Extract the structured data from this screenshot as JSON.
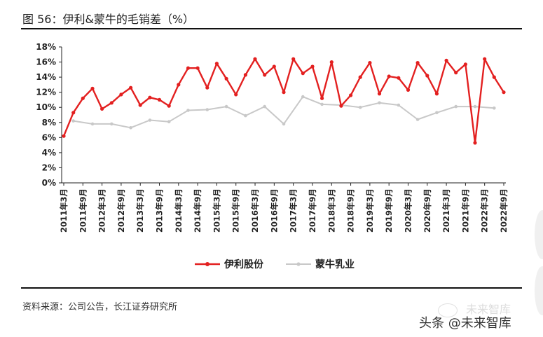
{
  "figure": {
    "title": "图 56：伊利&蒙牛的毛销差（%）",
    "source": "资料来源：公司公告，长江证券研究所"
  },
  "watermark": {
    "text": "头条 @未来智库",
    "ghost_text": "未来智库"
  },
  "chart_data": {
    "type": "line",
    "ylim": [
      0,
      18
    ],
    "yticks": [
      "0%",
      "2%",
      "4%",
      "6%",
      "8%",
      "10%",
      "12%",
      "14%",
      "16%",
      "18%"
    ],
    "xticks": [
      "2011年3月",
      "2011年9月",
      "2012年3月",
      "2012年9月",
      "2013年3月",
      "2013年9月",
      "2014年3月",
      "2014年9月",
      "2015年3月",
      "2015年9月",
      "2016年3月",
      "2016年9月",
      "2017年3月",
      "2017年9月",
      "2018年3月",
      "2018年9月",
      "2019年3月",
      "2019年9月",
      "2020年3月",
      "2020年9月",
      "2021年3月",
      "2021年9月",
      "2022年3月",
      "2022年9月"
    ],
    "grid": false,
    "legend_position": "bottom",
    "series": [
      {
        "name": "伊利股份",
        "color": "#e32020",
        "marker": "circle",
        "values": [
          6.2,
          9.3,
          11.2,
          12.5,
          9.8,
          10.6,
          11.7,
          12.6,
          10.3,
          11.3,
          11.0,
          10.2,
          13.0,
          15.2,
          15.2,
          12.6,
          15.8,
          13.8,
          11.7,
          14.3,
          16.4,
          14.3,
          15.4,
          12.0,
          16.4,
          14.5,
          15.4,
          11.2,
          16.0,
          10.2,
          11.6,
          14.0,
          15.9,
          11.8,
          14.1,
          13.9,
          12.3,
          15.9,
          14.2,
          11.8,
          16.2,
          14.6,
          15.7,
          5.3,
          16.4,
          14.0,
          12.0
        ]
      },
      {
        "name": "蒙牛乳业",
        "color": "#c8c8c8",
        "marker": "circle",
        "values": [
          8.2,
          7.8,
          7.8,
          7.3,
          8.3,
          8.1,
          9.6,
          9.7,
          10.1,
          8.9,
          10.1,
          7.8,
          11.4,
          10.4,
          10.3,
          10.0,
          10.6,
          10.3,
          8.4,
          9.3,
          10.1,
          10.1,
          9.9
        ],
        "x_index": [
          1,
          3,
          5,
          7,
          9,
          11,
          13,
          15,
          17,
          19,
          21,
          23,
          25,
          27,
          29,
          31,
          33,
          35,
          37,
          39,
          41,
          43,
          45
        ]
      }
    ]
  }
}
